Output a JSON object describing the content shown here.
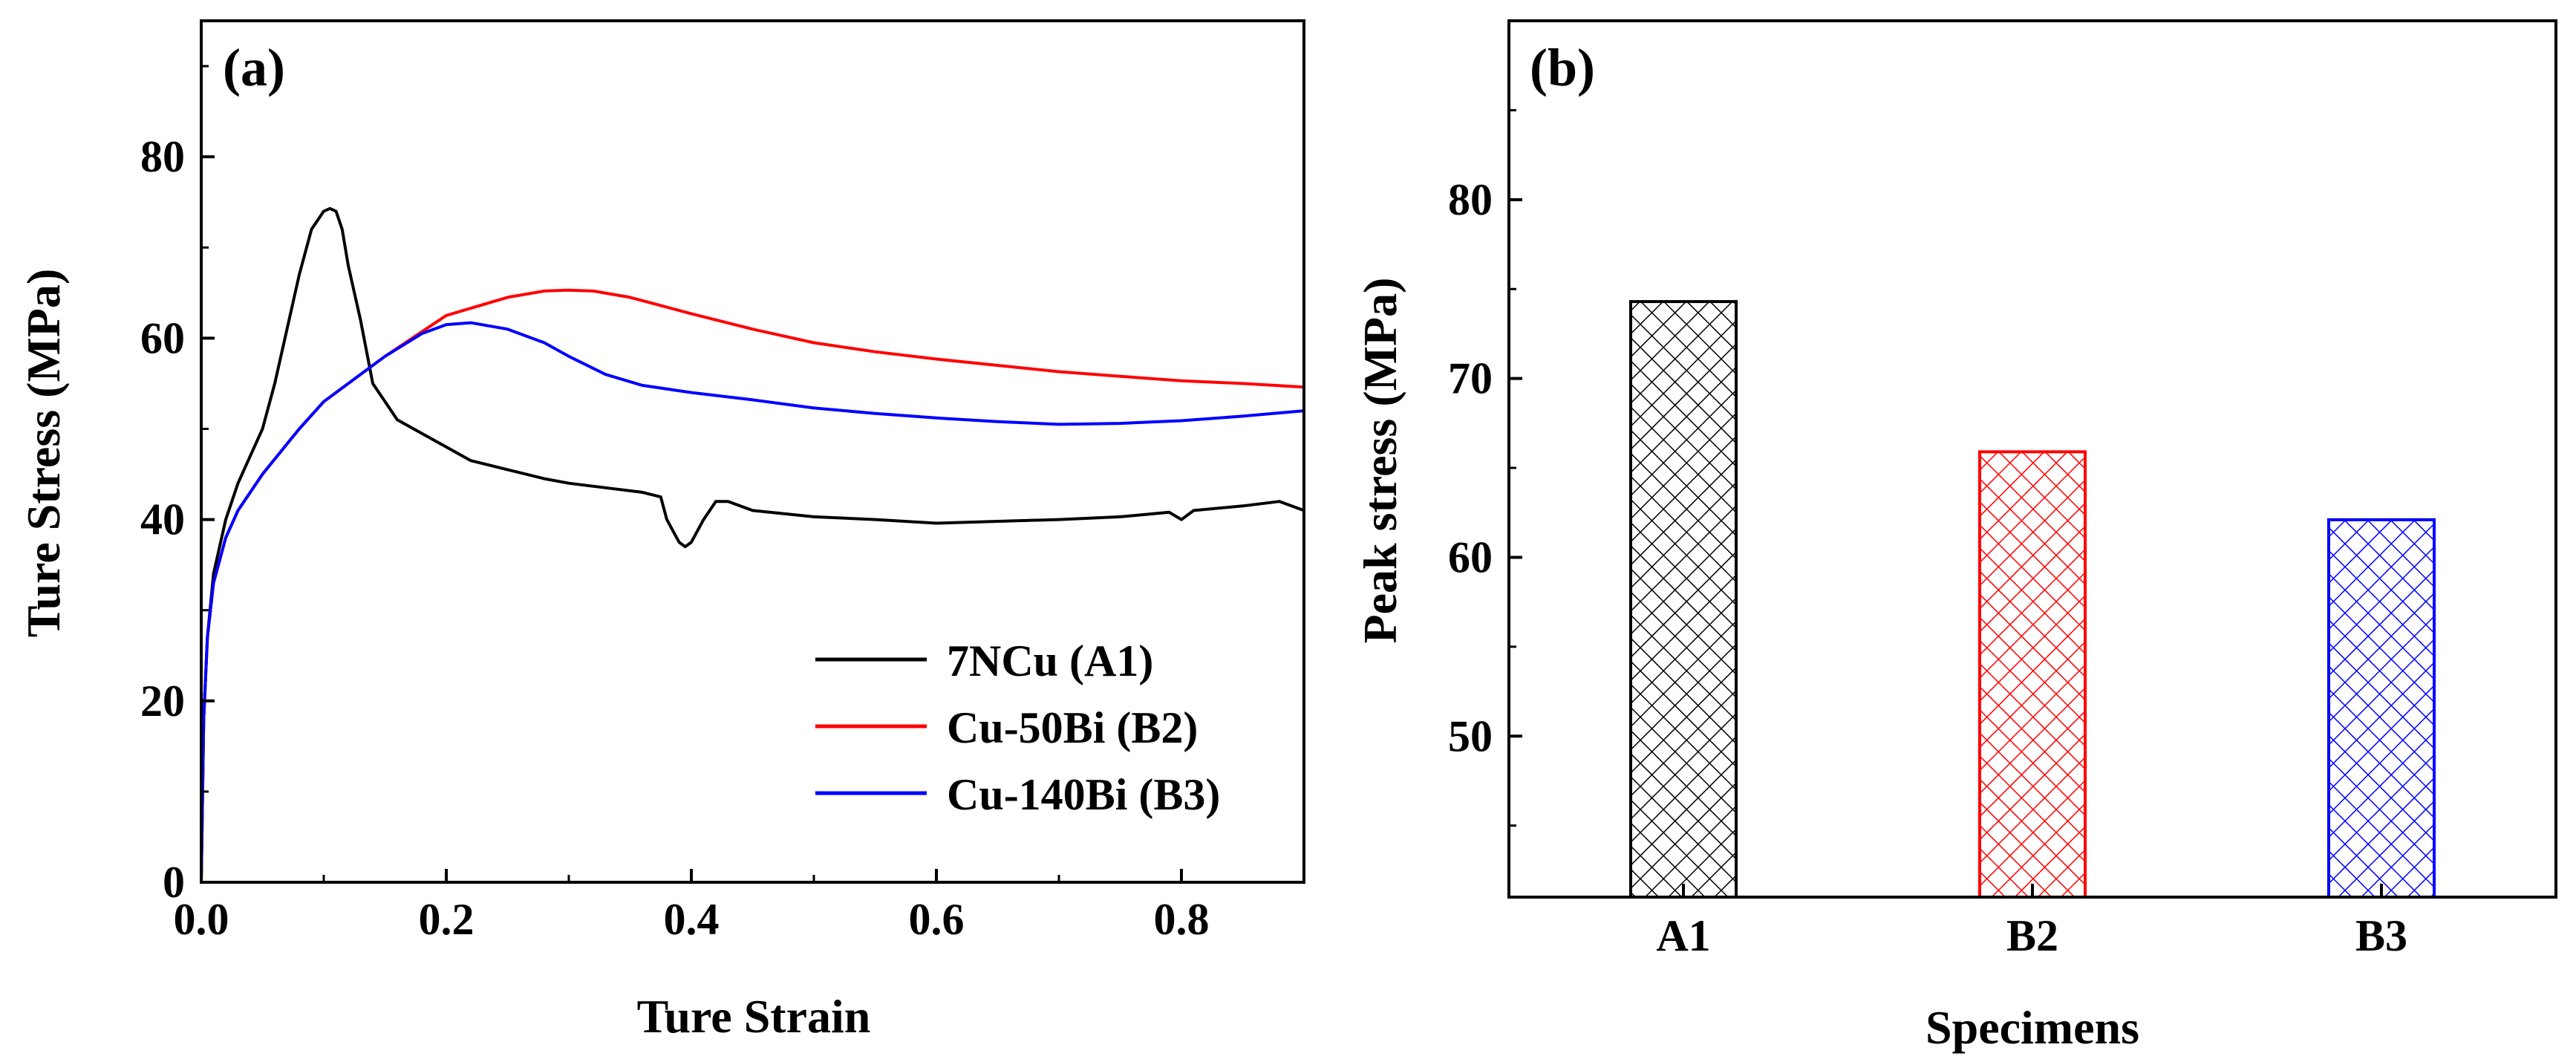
{
  "chart_data": [
    {
      "panel_label": "(a)",
      "type": "line",
      "xlabel": "Ture Strain",
      "ylabel": "Ture Stress (MPa)",
      "xlim": [
        0.0,
        0.9
      ],
      "ylim": [
        0,
        95
      ],
      "xticks": [
        0.0,
        0.2,
        0.4,
        0.6,
        0.8
      ],
      "xtick_labels": [
        "0.0",
        "0.2",
        "0.4",
        "0.6",
        "0.8"
      ],
      "yticks": [
        0,
        20,
        40,
        60,
        80
      ],
      "ytick_labels": [
        "0",
        "20",
        "40",
        "60",
        "80"
      ],
      "legend_position": "bottom-right",
      "series": [
        {
          "name": "7NCu (A1)",
          "color": "#000000",
          "x": [
            0.0,
            0.002,
            0.005,
            0.01,
            0.02,
            0.03,
            0.04,
            0.05,
            0.06,
            0.07,
            0.08,
            0.09,
            0.1,
            0.105,
            0.11,
            0.115,
            0.12,
            0.13,
            0.14,
            0.15,
            0.16,
            0.18,
            0.2,
            0.22,
            0.25,
            0.28,
            0.3,
            0.33,
            0.36,
            0.375,
            0.38,
            0.39,
            0.395,
            0.4,
            0.41,
            0.42,
            0.43,
            0.45,
            0.5,
            0.55,
            0.6,
            0.65,
            0.7,
            0.75,
            0.79,
            0.8,
            0.81,
            0.85,
            0.88,
            0.9
          ],
          "y": [
            0,
            18,
            27,
            34,
            40,
            44,
            47,
            50,
            55,
            61,
            67,
            72,
            74,
            74.3,
            74,
            72,
            68,
            62,
            55,
            53,
            51,
            49.5,
            48,
            46.5,
            45.5,
            44.5,
            44,
            43.5,
            43,
            42.5,
            40,
            37.5,
            37,
            37.5,
            40,
            42,
            42,
            41,
            40.3,
            40,
            39.6,
            39.8,
            40,
            40.3,
            40.8,
            40,
            41,
            41.5,
            42,
            41
          ]
        },
        {
          "name": "Cu-50Bi (B2)",
          "color": "#ff0000",
          "x": [
            0.0,
            0.002,
            0.005,
            0.01,
            0.02,
            0.03,
            0.05,
            0.08,
            0.1,
            0.15,
            0.2,
            0.25,
            0.28,
            0.3,
            0.32,
            0.35,
            0.4,
            0.45,
            0.5,
            0.55,
            0.6,
            0.65,
            0.7,
            0.75,
            0.8,
            0.85,
            0.9
          ],
          "y": [
            0,
            18,
            27,
            33,
            38,
            41,
            45,
            50,
            53,
            58,
            62.5,
            64.5,
            65.2,
            65.3,
            65.2,
            64.5,
            62.7,
            61,
            59.5,
            58.5,
            57.7,
            57,
            56.3,
            55.8,
            55.3,
            55,
            54.6
          ]
        },
        {
          "name": "Cu-140Bi (B3)",
          "color": "#0000ff",
          "x": [
            0.0,
            0.002,
            0.005,
            0.01,
            0.02,
            0.03,
            0.05,
            0.08,
            0.1,
            0.15,
            0.18,
            0.2,
            0.22,
            0.25,
            0.28,
            0.3,
            0.33,
            0.36,
            0.4,
            0.45,
            0.5,
            0.55,
            0.6,
            0.65,
            0.7,
            0.75,
            0.8,
            0.85,
            0.9
          ],
          "y": [
            0,
            18,
            27,
            33,
            38,
            41,
            45,
            50,
            53,
            58,
            60.5,
            61.5,
            61.7,
            61,
            59.5,
            58,
            56,
            54.8,
            54,
            53.2,
            52.3,
            51.7,
            51.2,
            50.8,
            50.5,
            50.6,
            50.9,
            51.4,
            52
          ]
        }
      ]
    },
    {
      "panel_label": "(b)",
      "type": "bar",
      "xlabel": "Specimens",
      "ylabel": "Peak stress (MPa)",
      "ylim": [
        41,
        90
      ],
      "yticks": [
        50,
        60,
        70,
        80
      ],
      "ytick_labels": [
        "50",
        "60",
        "70",
        "80"
      ],
      "categories": [
        "A1",
        "B2",
        "B3"
      ],
      "values": [
        74.3,
        65.9,
        62.1
      ],
      "colors": [
        "#000000",
        "#ff0000",
        "#0000ff"
      ],
      "pattern": "crosshatch"
    }
  ]
}
